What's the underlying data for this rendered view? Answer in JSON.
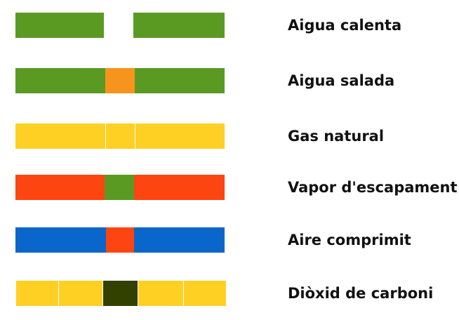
{
  "pipes": [
    {
      "label": "Aigua calenta",
      "segments": [
        {
          "color": "#5a9a23"
        },
        {
          "color": "#ffffff"
        },
        {
          "color": "#5a9a23"
        }
      ]
    },
    {
      "label": "Aigua salada",
      "segments": [
        {
          "color": "#5a9a23"
        },
        {
          "color": "#f7941d"
        },
        {
          "color": "#5a9a23"
        }
      ]
    },
    {
      "label": "Gas natural",
      "segments": [
        {
          "color": "#fdd023"
        },
        {
          "color": "#fdd023"
        },
        {
          "color": "#fdd023"
        }
      ]
    },
    {
      "label": "Vapor d'escapament",
      "segments": [
        {
          "color": "#fd4511"
        },
        {
          "color": "#5a9a23"
        },
        {
          "color": "#fd4511"
        }
      ]
    },
    {
      "label": "Aire comprimit",
      "segments": [
        {
          "color": "#0b66cc"
        },
        {
          "color": "#fd4511"
        },
        {
          "color": "#0b66cc"
        }
      ]
    },
    {
      "label": "Diòxid de carboni",
      "segments": [
        {
          "color": "#fdd023"
        },
        {
          "color": "#fdd023"
        },
        {
          "color": "#334100"
        },
        {
          "color": "#fdd023"
        },
        {
          "color": "#fdd023"
        }
      ]
    }
  ]
}
